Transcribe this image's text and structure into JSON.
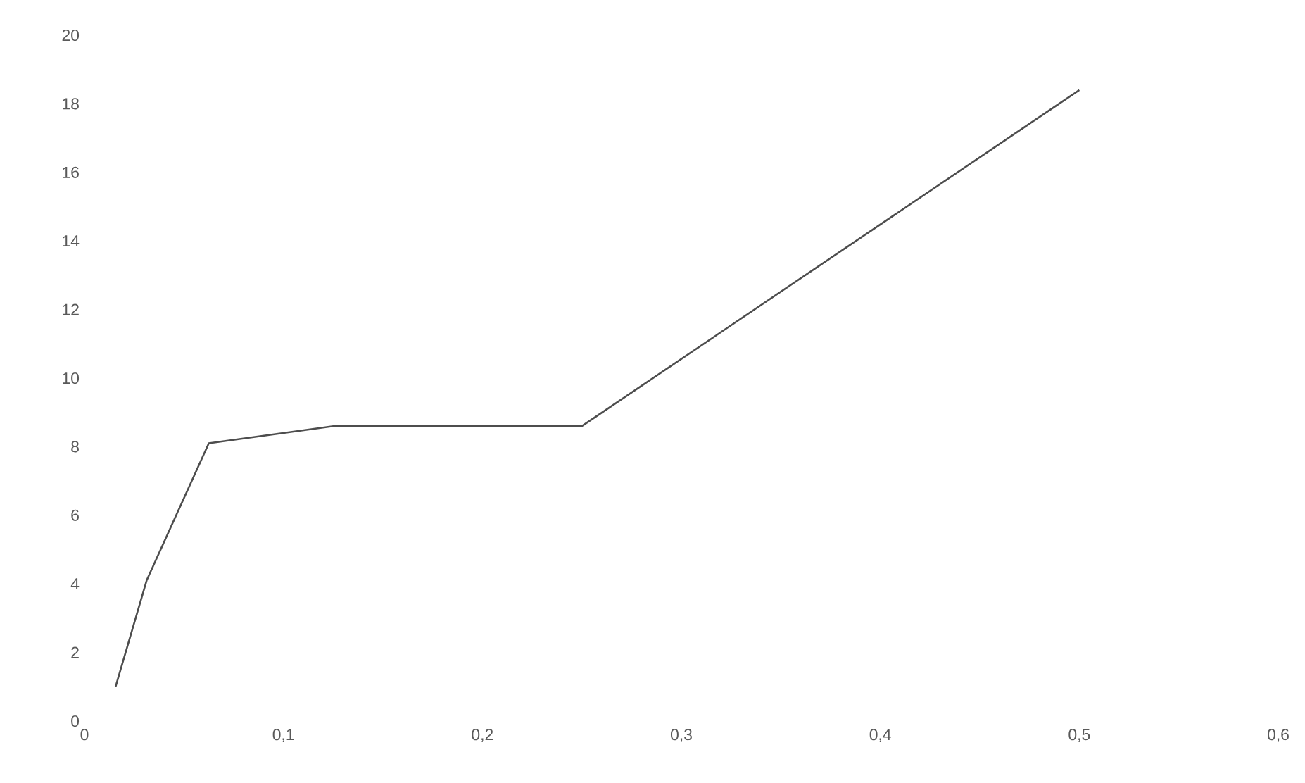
{
  "chart_data": {
    "type": "line",
    "x": [
      0.015625,
      0.03125,
      0.0625,
      0.125,
      0.25,
      0.5
    ],
    "series": [
      {
        "color": "#4d4d4d",
        "values": [
          1,
          4.1,
          8.1,
          8.6,
          8.6,
          18.4
        ]
      }
    ],
    "xlim": [
      0,
      0.6
    ],
    "ylim": [
      0,
      20
    ],
    "xticks": [
      0,
      {
        "value": 0.1,
        "label": "0,1"
      },
      {
        "value": 0.2,
        "label": "0,2"
      },
      {
        "value": 0.3,
        "label": "0,3"
      },
      {
        "value": 0.4,
        "label": "0,4"
      },
      {
        "value": 0.5,
        "label": "0,5"
      },
      {
        "value": 0.6,
        "label": "0,6"
      }
    ],
    "yticks": [
      0,
      2,
      4,
      6,
      8,
      10,
      12,
      14,
      16,
      18,
      20
    ],
    "marker": "none",
    "line_style": "solid"
  }
}
